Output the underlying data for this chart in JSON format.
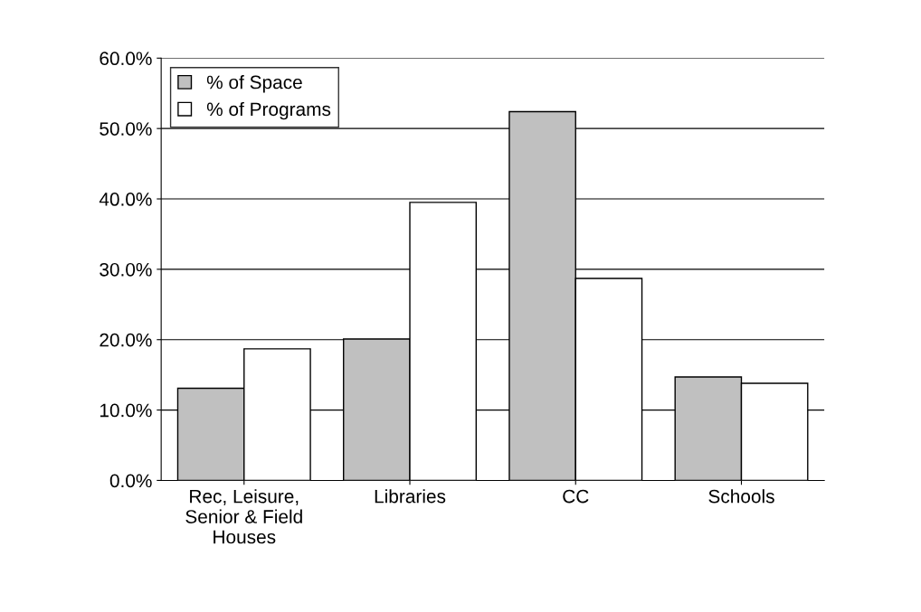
{
  "chart_data": {
    "type": "bar",
    "categories": [
      "Rec, Leisure,\nSenior & Field\nHouses",
      "Libraries",
      "CC",
      "Schools"
    ],
    "series": [
      {
        "name": "% of Space",
        "color": "#c0c0c0",
        "values": [
          13.1,
          20.1,
          52.4,
          14.7
        ]
      },
      {
        "name": "% of Programs",
        "color": "#ffffff",
        "values": [
          18.7,
          39.5,
          28.7,
          13.8
        ]
      }
    ],
    "ylim": [
      0,
      60
    ],
    "yticks": [
      {
        "value": 0,
        "label": "0.0%"
      },
      {
        "value": 10,
        "label": "10.0%"
      },
      {
        "value": 20,
        "label": "20.0%"
      },
      {
        "value": 30,
        "label": "30.0%"
      },
      {
        "value": 40,
        "label": "40.0%"
      },
      {
        "value": 50,
        "label": "50.0%"
      },
      {
        "value": 60,
        "label": "60.0%"
      }
    ],
    "grid": "y",
    "legend": "top left"
  }
}
